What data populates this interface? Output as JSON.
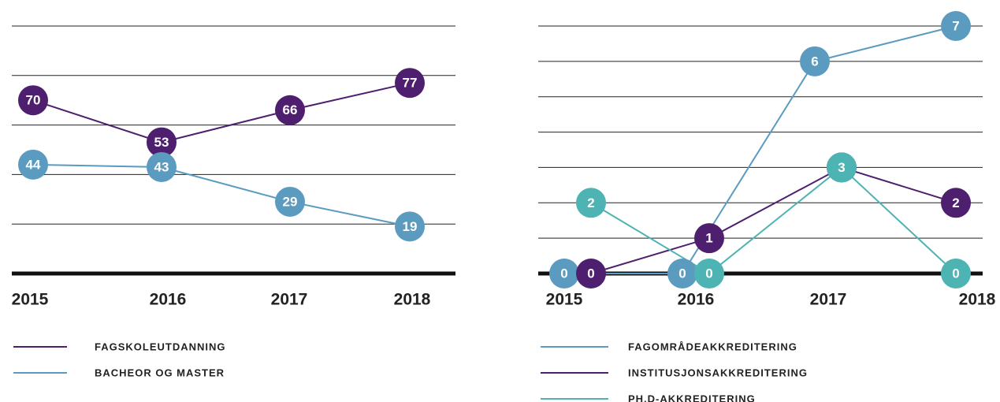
{
  "chart_data": [
    {
      "type": "line",
      "categories": [
        "2015",
        "2016",
        "2017",
        "2018"
      ],
      "series": [
        {
          "name": "FAGSKOLEUTDANNING",
          "color": "#4f1f6f",
          "values": [
            70,
            53,
            66,
            77
          ]
        },
        {
          "name": "BACHEOR OG MASTER",
          "color": "#5b9bc0",
          "values": [
            44,
            43,
            29,
            19
          ]
        }
      ],
      "ylim": [
        0,
        100
      ],
      "yticks": [
        0,
        20,
        40,
        60,
        80,
        100
      ],
      "grid": true
    },
    {
      "type": "line",
      "categories": [
        "2015",
        "2016",
        "2017",
        "2018"
      ],
      "series": [
        {
          "name": "FAGOMRÅDEAKKREDITERING",
          "color": "#5b9bc0",
          "values": [
            0,
            0,
            6,
            7
          ]
        },
        {
          "name": "INSTITUSJONSAKKREDITERING",
          "color": "#4f1f6f",
          "values": [
            0,
            1,
            3,
            2
          ]
        },
        {
          "name": "PH.D-AKKREDITERING",
          "color": "#4eb3b3",
          "values": [
            2,
            0,
            3,
            0
          ]
        }
      ],
      "ylim": [
        0,
        7
      ],
      "yticks": [
        0,
        1,
        2,
        3,
        4,
        5,
        6,
        7
      ],
      "grid": true
    }
  ]
}
